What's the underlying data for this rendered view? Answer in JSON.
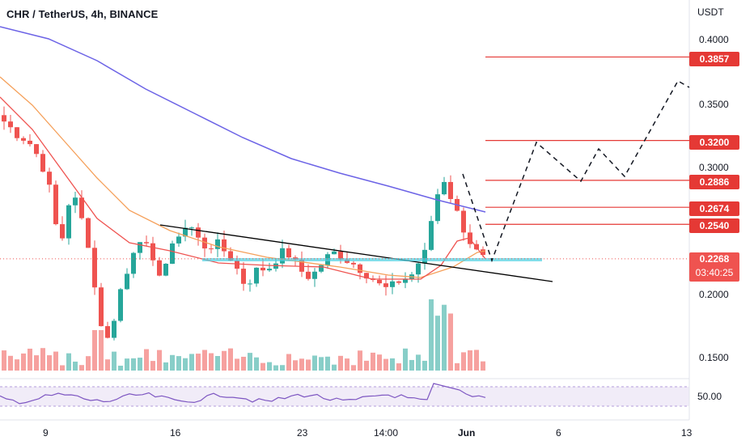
{
  "header": {
    "title": "CHR / TetherUS, 4h, BINANCE"
  },
  "price_axis": {
    "unit": "USDT",
    "ticks": [
      "0.4000",
      "0.3500",
      "0.3000",
      "0.2000",
      "0.1500"
    ]
  },
  "price_levels": [
    "0.3857",
    "0.3200",
    "0.2886",
    "0.2674",
    "0.2540"
  ],
  "current": {
    "price": "0.2268",
    "countdown": "03:40:25"
  },
  "date_axis": {
    "ticks": [
      "9",
      "16",
      "23",
      "14:00",
      "Jun",
      "6",
      "13"
    ]
  },
  "rsi": {
    "level_label": "50.00"
  },
  "colors": {
    "up": "#26a69a",
    "down": "#ef5350",
    "ma_blue": "#6c63e6",
    "ma_orange": "#f5a05a",
    "ma_red": "#ef5350",
    "level_red": "#e53935",
    "trendline": "#000000",
    "support": "#4dd0e1"
  },
  "chart_data": {
    "type": "candlestick",
    "title": "CHR / TetherUS, 4h, BINANCE",
    "ylabel": "USDT",
    "ylim": [
      0.13,
      0.42
    ],
    "x": [
      "9",
      "16",
      "23",
      "14:00",
      "Jun",
      "6",
      "13"
    ],
    "current_price": 0.2268,
    "projected_levels": [
      0.3857,
      0.32,
      0.2886,
      0.2674,
      0.254
    ],
    "close_path": [
      0.335,
      0.33,
      0.325,
      0.322,
      0.318,
      0.31,
      0.3,
      0.285,
      0.255,
      0.24,
      0.27,
      0.275,
      0.26,
      0.245,
      0.21,
      0.18,
      0.16,
      0.175,
      0.2,
      0.21,
      0.23,
      0.245,
      0.24,
      0.225,
      0.215,
      0.22,
      0.23,
      0.245,
      0.25,
      0.255,
      0.245,
      0.238,
      0.235,
      0.24,
      0.236,
      0.23,
      0.225,
      0.212,
      0.205,
      0.215,
      0.22,
      0.218,
      0.222,
      0.23,
      0.233,
      0.228,
      0.22,
      0.215,
      0.212,
      0.218,
      0.225,
      0.23,
      0.232,
      0.228,
      0.225,
      0.222,
      0.218,
      0.214,
      0.21,
      0.205,
      0.203,
      0.206,
      0.21,
      0.212,
      0.215,
      0.225,
      0.232,
      0.26,
      0.28,
      0.29,
      0.275,
      0.262,
      0.25,
      0.24,
      0.232,
      0.227
    ]
  }
}
